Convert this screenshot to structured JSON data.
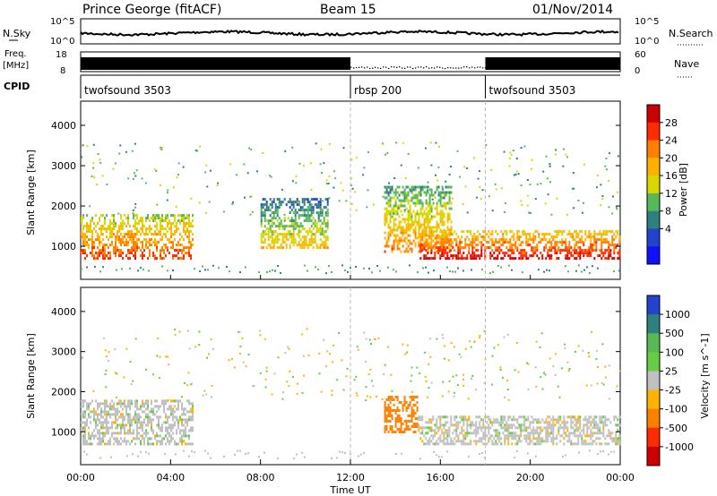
{
  "header": {
    "title": "Prince George (fitACF)",
    "beam": "Beam 15",
    "date": "01/Nov/2014"
  },
  "status_panel": {
    "nsky_label": "N.Sky",
    "nsky_ticks": [
      "10^5",
      "10^0"
    ],
    "nsearch_label": "N.Search",
    "freq_label": "Freq.",
    "freq_unit": "[MHz]",
    "freq_ticks": [
      "18",
      "8"
    ],
    "nave_label": "Nave",
    "nave_ticks": [
      "60",
      "0"
    ],
    "cpid_label": "CPID",
    "cpid_segments": [
      {
        "label": "twofsound 3503",
        "start_hour": 0,
        "end_hour": 12
      },
      {
        "label": "rbsp 200",
        "start_hour": 12,
        "end_hour": 18
      },
      {
        "label": "twofsound 3503",
        "start_hour": 18,
        "end_hour": 24
      }
    ]
  },
  "chart_data": [
    {
      "type": "heatmap",
      "name": "power",
      "ylabel": "Slant Range [km]",
      "colorbar_label": "Power [dB]",
      "colorbar_ticks": [
        "28",
        "24",
        "20",
        "16",
        "12",
        "8",
        "4"
      ],
      "colorbar_values": [
        28,
        24,
        20,
        16,
        12,
        8,
        4
      ],
      "colorbar_colors": [
        "#cc0000",
        "#ff2a00",
        "#ff7f00",
        "#ffb300",
        "#d8d800",
        "#58b858",
        "#2f7f7f",
        "#2244cc",
        "#1010ff"
      ],
      "xlim": [
        0,
        24
      ],
      "ylim": [
        180,
        4600
      ],
      "yticks": [
        1000,
        2000,
        3000,
        4000
      ],
      "bands": [
        {
          "start_hour": 0.0,
          "end_hour": 5.0,
          "range_low_km": 700,
          "range_high_km": 1800,
          "value_db": 20
        },
        {
          "start_hour": 8.0,
          "end_hour": 11.0,
          "range_low_km": 1000,
          "range_high_km": 2200,
          "value_db": 12
        },
        {
          "start_hour": 13.5,
          "end_hour": 16.5,
          "range_low_km": 900,
          "range_high_km": 2500,
          "value_db": 16
        },
        {
          "start_hour": 15.0,
          "end_hour": 24.0,
          "range_low_km": 700,
          "range_high_km": 1400,
          "value_db": 24
        }
      ]
    },
    {
      "type": "heatmap",
      "name": "velocity",
      "ylabel": "Slant Range [km]",
      "xlabel": "Time UT",
      "colorbar_label": "Velocity [m s^-1]",
      "colorbar_ticks": [
        "1000",
        "500",
        "100",
        "25",
        "-25",
        "-100",
        "-500",
        "-1000"
      ],
      "colorbar_values": [
        1000,
        500,
        100,
        25,
        -25,
        -100,
        -500,
        -1000
      ],
      "colorbar_colors": [
        "#2244cc",
        "#2f7f7f",
        "#58b858",
        "#66cc44",
        "#c0c0c0",
        "#ffb300",
        "#ff7f00",
        "#ff2a00",
        "#cc0000"
      ],
      "xlim": [
        0,
        24
      ],
      "ylim": [
        180,
        4600
      ],
      "yticks": [
        1000,
        2000,
        3000,
        4000
      ],
      "xticks": [
        "00:00",
        "04:00",
        "08:00",
        "12:00",
        "16:00",
        "20:00",
        "00:00"
      ],
      "bands": [
        {
          "start_hour": 0.0,
          "end_hour": 5.0,
          "range_low_km": 700,
          "range_high_km": 1800,
          "value_ms": 0
        },
        {
          "start_hour": 13.5,
          "end_hour": 15.0,
          "range_low_km": 1000,
          "range_high_km": 1900,
          "value_ms": -300
        },
        {
          "start_hour": 15.0,
          "end_hour": 24.0,
          "range_low_km": 700,
          "range_high_km": 1400,
          "value_ms": 0
        }
      ]
    }
  ]
}
